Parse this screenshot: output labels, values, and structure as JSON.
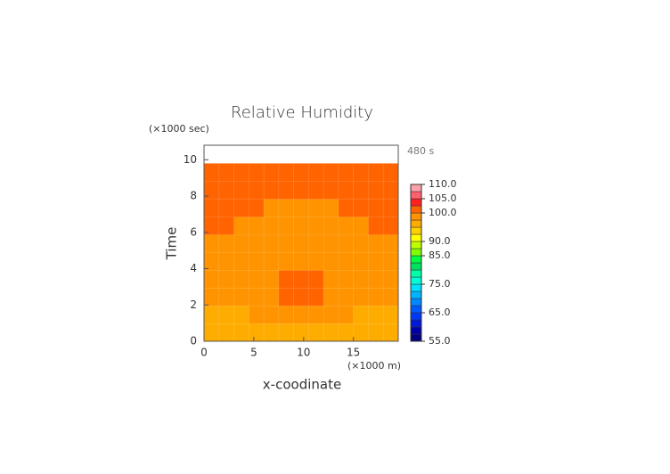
{
  "chart_data": {
    "type": "contour",
    "title": "Relative Humidity",
    "x_label": "x-coodinate",
    "y_label": "Time",
    "x_unit": "(×1000 m)",
    "y_unit": "(×1000 sec)",
    "annotation": "480 s",
    "x": [
      0,
      1.5,
      3,
      4.5,
      6,
      7.5,
      9,
      10.5,
      12,
      13.5,
      15,
      16.5,
      18,
      19.5
    ],
    "y": [
      0,
      0.98,
      1.96,
      2.94,
      3.92,
      4.9,
      5.88,
      6.86,
      7.84,
      8.82,
      9.8
    ],
    "z": [
      [
        96,
        96,
        96,
        96,
        96,
        96,
        96,
        96,
        96,
        96,
        96,
        96,
        96
      ],
      [
        96,
        96,
        96,
        98.5,
        98.5,
        98.5,
        98.5,
        98.5,
        98.5,
        98.5,
        96,
        96,
        96
      ],
      [
        98.5,
        98.5,
        98.5,
        98.5,
        98.5,
        101,
        101,
        101,
        98.5,
        98.5,
        98.5,
        98.5,
        98.5
      ],
      [
        98.5,
        98.5,
        98.5,
        98.5,
        98.5,
        101,
        101,
        101,
        98.5,
        98.5,
        98.5,
        98.5,
        98.5
      ],
      [
        98.5,
        98.5,
        98.5,
        98.5,
        98.5,
        98.5,
        98.5,
        98.5,
        98.5,
        98.5,
        98.5,
        98.5,
        98.5
      ],
      [
        98.5,
        98.5,
        98.5,
        98.5,
        98.5,
        98.5,
        98.5,
        98.5,
        98.5,
        98.5,
        98.5,
        98.5,
        98.5
      ],
      [
        101,
        101,
        98.5,
        98.5,
        98.5,
        98.5,
        98.5,
        98.5,
        98.5,
        98.5,
        98.5,
        101,
        101
      ],
      [
        101,
        101,
        101,
        101,
        98.5,
        98.5,
        98.5,
        98.5,
        98.5,
        101,
        101,
        101,
        101
      ],
      [
        101,
        101,
        101,
        101,
        101,
        101,
        101,
        101,
        101,
        101,
        101,
        101,
        101
      ],
      [
        101,
        101,
        101,
        101,
        101,
        101,
        101,
        101,
        101,
        101,
        101,
        101,
        101
      ]
    ],
    "xlim": [
      0,
      19.5
    ],
    "ylim": [
      0,
      10.8
    ],
    "xticks": [
      0,
      5,
      10,
      15
    ],
    "yticks": [
      0,
      2,
      4,
      6,
      8,
      10
    ],
    "colorbar": {
      "levels": [
        55,
        57.5,
        60,
        62.5,
        65,
        67.5,
        70,
        72.5,
        75,
        77.5,
        80,
        82.5,
        85,
        87.5,
        90,
        92.5,
        95,
        97.5,
        100,
        102.5,
        105,
        107.5,
        110
      ],
      "colors": [
        "#000080",
        "#0000a8",
        "#0018d8",
        "#0038f8",
        "#0058ff",
        "#0088ff",
        "#00b4ff",
        "#00e0ff",
        "#00ffd8",
        "#00ffa8",
        "#00e060",
        "#00ff40",
        "#80ff00",
        "#c0ff00",
        "#ffff00",
        "#ffd000",
        "#ffac00",
        "#ff9400",
        "#ff6400",
        "#ff2020",
        "#ff6070",
        "#ffa0a8"
      ],
      "ticks": [
        {
          "value": 55,
          "label": "55.0"
        },
        {
          "value": 65,
          "label": "65.0"
        },
        {
          "value": 75,
          "label": "75.0"
        },
        {
          "value": 85,
          "label": "85.0"
        },
        {
          "value": 90,
          "label": "90.0"
        },
        {
          "value": 100,
          "label": "100.0"
        },
        {
          "value": 105,
          "label": "105.0"
        },
        {
          "value": 110,
          "label": "110.0"
        }
      ]
    }
  }
}
